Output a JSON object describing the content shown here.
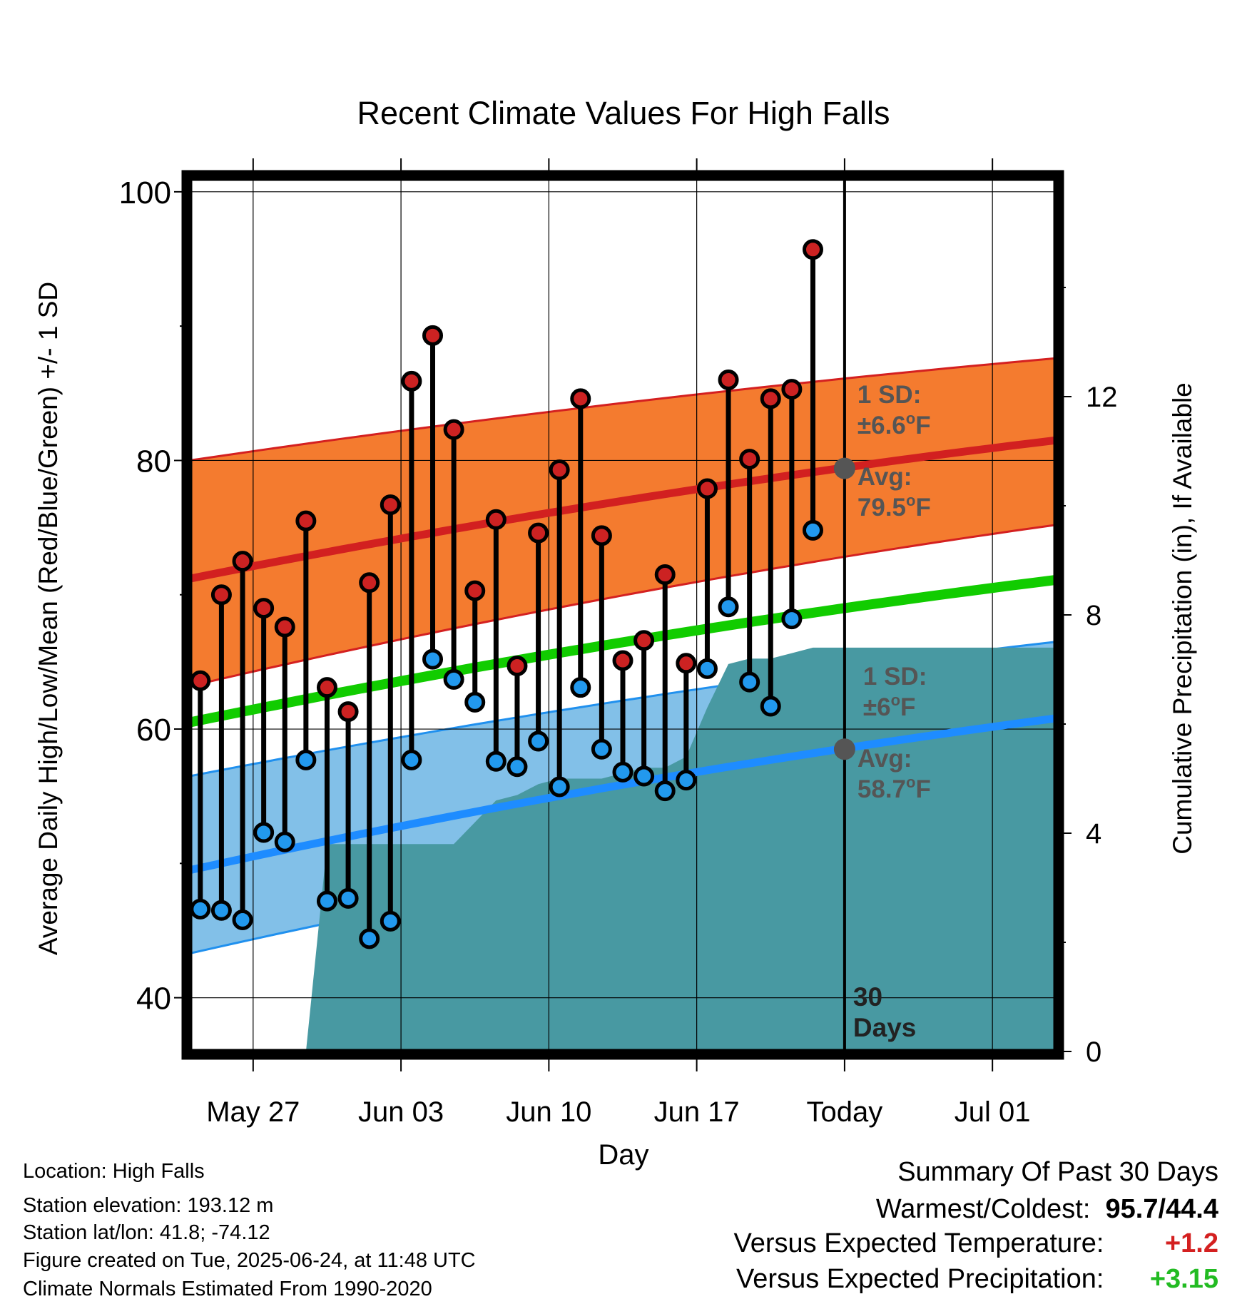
{
  "chart_data": {
    "type": "line",
    "title": "Recent Climate Values For High Falls",
    "xlabel": "Day",
    "ylabel": "Average Daily High/Low/Mean (Red/Blue/Green) +/- 1 SD",
    "y2label": "Cumulative Precipitation (in), If Available",
    "x_start": "May 24",
    "x_end": "Jul 04",
    "xlim": [
      -0.5,
      40.5
    ],
    "ylim": [
      36,
      101
    ],
    "y2lim": [
      0,
      16
    ],
    "today_index": 30.5,
    "x_ticks": [
      {
        "i": 2.5,
        "label": "May 27"
      },
      {
        "i": 9.5,
        "label": "Jun 03"
      },
      {
        "i": 16.5,
        "label": "Jun 10"
      },
      {
        "i": 23.5,
        "label": "Jun 17"
      },
      {
        "i": 30.5,
        "label": "Today"
      },
      {
        "i": 37.5,
        "label": "Jul 01"
      }
    ],
    "y_ticks": [
      "40",
      "60",
      "80",
      "100"
    ],
    "y_minor_ticks": [
      50,
      70,
      90
    ],
    "y2_ticks": [
      "0",
      "4",
      "8",
      "12"
    ],
    "grid": true,
    "normals": {
      "high": {
        "start": 71.2,
        "end": 81.5
      },
      "high_sd_upper": {
        "start": 80.0,
        "end": 87.6
      },
      "high_sd_lower": {
        "start": 63.2,
        "end": 75.2
      },
      "mean": {
        "start": 60.5,
        "end": 71.1
      },
      "low": {
        "start": 49.5,
        "end": 60.8
      },
      "low_sd_upper": {
        "start": 56.5,
        "end": 66.5
      },
      "low_sd_lower": {
        "start": 43.3,
        "end": 55.0
      }
    },
    "series": [
      {
        "name": "High",
        "color": "#d02020",
        "values": [
          63.6,
          70.0,
          72.5,
          69.0,
          67.6,
          75.5,
          63.1,
          61.3,
          70.9,
          76.7,
          85.9,
          89.3,
          82.3,
          70.3,
          75.6,
          64.7,
          74.6,
          79.3,
          84.6,
          74.4,
          65.1,
          66.6,
          71.5,
          64.9,
          77.9,
          86.0,
          80.1,
          84.6,
          85.3,
          95.7
        ]
      },
      {
        "name": "Low",
        "color": "#2299ee",
        "values": [
          46.6,
          46.5,
          45.8,
          52.3,
          51.6,
          57.7,
          47.2,
          47.4,
          44.4,
          45.7,
          57.7,
          65.2,
          63.7,
          62.0,
          57.6,
          57.2,
          59.1,
          55.7,
          63.1,
          58.5,
          56.8,
          56.5,
          55.4,
          56.2,
          64.5,
          69.1,
          63.5,
          61.7,
          68.2,
          74.8
        ]
      }
    ],
    "precip_cumulative": [
      0.0,
      0.0,
      0.0,
      0.0,
      0.0,
      0.0,
      3.8,
      3.8,
      3.8,
      3.8,
      3.8,
      3.8,
      3.8,
      4.2,
      4.6,
      4.7,
      4.9,
      5.0,
      5.0,
      5.0,
      5.1,
      5.2,
      5.2,
      5.4,
      6.3,
      7.1,
      7.2,
      7.2,
      7.3,
      7.4,
      7.4
    ],
    "annotations": [
      {
        "text_top": "1 SD:",
        "pm": "±",
        "value": "6.6",
        "deg": "o",
        "unit": "F"
      },
      {
        "text_top": "Avg:",
        "pm": "",
        "value": "79.5",
        "deg": "o",
        "unit": "F"
      },
      {
        "text_top": "1 SD:",
        "pm": "±",
        "value": "6",
        "deg": "o",
        "unit": "F"
      },
      {
        "text_top": "Avg:",
        "pm": "",
        "value": "58.7",
        "deg": "o",
        "unit": "F"
      }
    ],
    "window_label": [
      "30",
      "Days"
    ],
    "colors": {
      "high_band": "#f47b2f",
      "high_band_edge": "#d42020",
      "high_line": "#d22020",
      "low_band": "#82c0e8",
      "low_band_edge": "#2090ee",
      "low_line": "#1e8cff",
      "mean_line": "#11cc00",
      "precip": "#4899a2",
      "high_dot": "#cc2222",
      "low_dot": "#2299ee",
      "annotation": "#555555",
      "avg_marker": "#555555"
    }
  },
  "info": {
    "location": "Location: High Falls",
    "elevation": "Station elevation: 193.12 m",
    "latlon": "Station lat/lon: 41.8; -74.12",
    "created": "Figure created on Tue, 2025-06-24, at 11:48 UTC",
    "normals": "Climate Normals Estimated From 1990-2020"
  },
  "summary": {
    "title": "Summary Of Past 30 Days",
    "warm_cold_label": "Warmest/Coldest:",
    "warm_cold_value": "95.7/44.4",
    "temp_label": "Versus Expected Temperature:",
    "temp_value": "+1.2",
    "precip_label": "Versus Expected Precipitation:",
    "precip_value": "+3.15"
  }
}
